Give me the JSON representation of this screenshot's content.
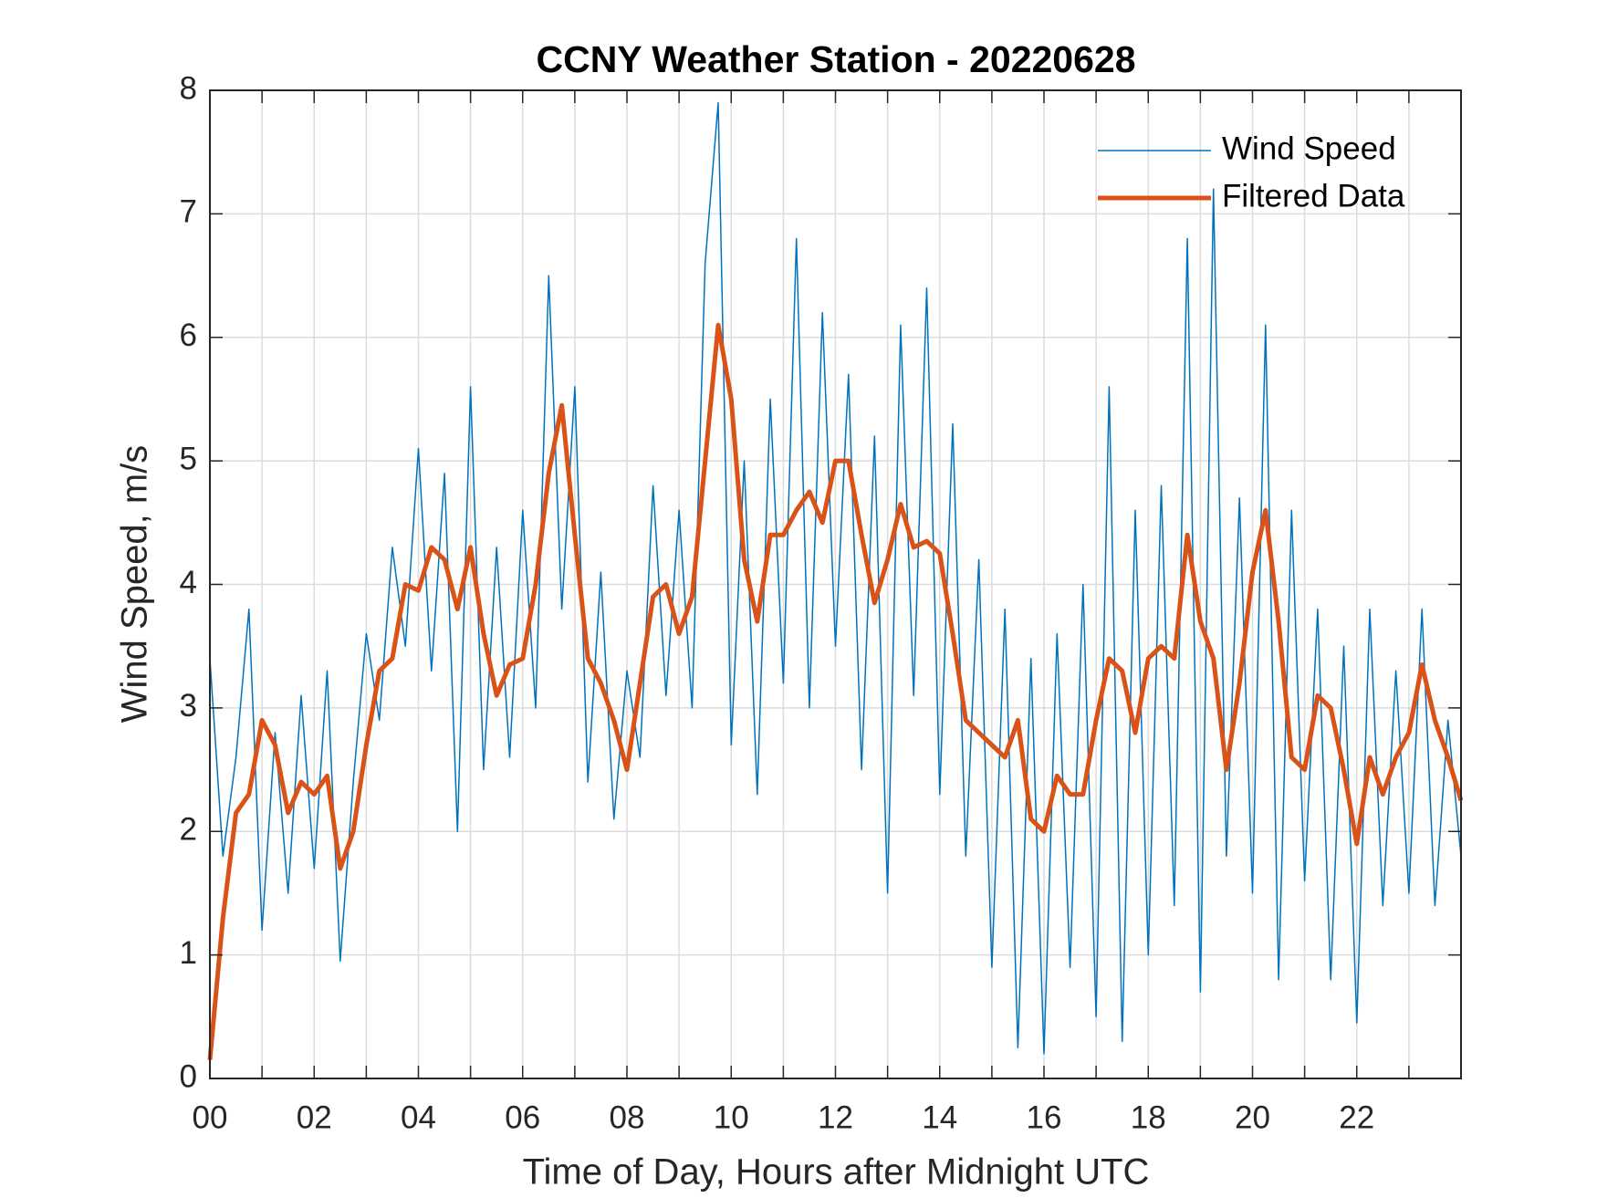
{
  "chart_data": {
    "type": "line",
    "title": "CCNY Weather Station - 20220628",
    "xlabel": "Time of Day, Hours after Midnight UTC",
    "ylabel": "Wind Speed, m/s",
    "x": [
      0,
      0.25,
      0.5,
      0.75,
      1,
      1.25,
      1.5,
      1.75,
      2,
      2.25,
      2.5,
      2.75,
      3,
      3.25,
      3.5,
      3.75,
      4,
      4.25,
      4.5,
      4.75,
      5,
      5.25,
      5.5,
      5.75,
      6,
      6.25,
      6.5,
      6.75,
      7,
      7.25,
      7.5,
      7.75,
      8,
      8.25,
      8.5,
      8.75,
      9,
      9.25,
      9.5,
      9.75,
      10,
      10.25,
      10.5,
      10.75,
      11,
      11.25,
      11.5,
      11.75,
      12,
      12.25,
      12.5,
      12.75,
      13,
      13.25,
      13.5,
      13.75,
      14,
      14.25,
      14.5,
      14.75,
      15,
      15.25,
      15.5,
      15.75,
      16,
      16.25,
      16.5,
      16.75,
      17,
      17.25,
      17.5,
      17.75,
      18,
      18.25,
      18.5,
      18.75,
      19,
      19.25,
      19.5,
      19.75,
      20,
      20.25,
      20.5,
      20.75,
      21,
      21.25,
      21.5,
      21.75,
      22,
      22.25,
      22.5,
      22.75,
      23,
      23.25,
      23.5,
      23.75,
      24
    ],
    "series": [
      {
        "name": "Wind Speed",
        "color": "#0072bd",
        "width": 1.5,
        "values": [
          3.4,
          1.8,
          2.6,
          3.8,
          1.2,
          2.8,
          1.5,
          3.1,
          1.7,
          3.3,
          0.95,
          2.4,
          3.6,
          2.9,
          4.3,
          3.5,
          5.1,
          3.3,
          4.9,
          2.0,
          5.6,
          2.5,
          4.3,
          2.6,
          4.6,
          3.0,
          6.5,
          3.8,
          5.6,
          2.4,
          4.1,
          2.1,
          3.3,
          2.6,
          4.8,
          3.1,
          4.6,
          3.0,
          6.6,
          7.9,
          2.7,
          5.0,
          2.3,
          5.5,
          3.2,
          6.8,
          3.0,
          6.2,
          3.5,
          5.7,
          2.5,
          5.2,
          1.5,
          6.1,
          3.1,
          6.4,
          2.3,
          5.3,
          1.8,
          4.2,
          0.9,
          3.8,
          0.25,
          3.4,
          0.2,
          3.6,
          0.9,
          4.0,
          0.5,
          5.6,
          0.3,
          4.6,
          1.0,
          4.8,
          1.4,
          6.8,
          0.7,
          7.2,
          1.8,
          4.7,
          1.5,
          6.1,
          0.8,
          4.6,
          1.6,
          3.8,
          0.8,
          3.5,
          0.45,
          3.8,
          1.4,
          3.3,
          1.5,
          3.8,
          1.4,
          2.9,
          1.8
        ]
      },
      {
        "name": "Filtered Data",
        "color": "#d95319",
        "width": 5,
        "values": [
          0.15,
          1.3,
          2.15,
          2.3,
          2.9,
          2.7,
          2.15,
          2.4,
          2.3,
          2.45,
          1.7,
          2.0,
          2.7,
          3.3,
          3.4,
          4.0,
          3.95,
          4.3,
          4.2,
          3.8,
          4.3,
          3.6,
          3.1,
          3.35,
          3.4,
          4.0,
          4.9,
          5.45,
          4.4,
          3.4,
          3.2,
          2.9,
          2.5,
          3.2,
          3.9,
          4.0,
          3.6,
          3.9,
          5.0,
          6.1,
          5.5,
          4.2,
          3.7,
          4.4,
          4.4,
          4.6,
          4.75,
          4.5,
          5.0,
          5.0,
          4.4,
          3.85,
          4.2,
          4.65,
          4.3,
          4.35,
          4.25,
          3.6,
          2.9,
          2.8,
          2.7,
          2.6,
          2.9,
          2.1,
          2.0,
          2.45,
          2.3,
          2.3,
          2.9,
          3.4,
          3.3,
          2.8,
          3.4,
          3.5,
          3.4,
          4.4,
          3.7,
          3.4,
          2.5,
          3.2,
          4.1,
          4.6,
          3.7,
          2.6,
          2.5,
          3.1,
          3.0,
          2.5,
          1.9,
          2.6,
          2.3,
          2.6,
          2.8,
          3.35,
          2.9,
          2.6,
          2.25
        ]
      }
    ],
    "xlim": [
      0,
      24
    ],
    "xticks": [
      {
        "value": 0,
        "label": "00"
      },
      {
        "value": 2,
        "label": "02"
      },
      {
        "value": 4,
        "label": "04"
      },
      {
        "value": 6,
        "label": "06"
      },
      {
        "value": 8,
        "label": "08"
      },
      {
        "value": 10,
        "label": "10"
      },
      {
        "value": 12,
        "label": "12"
      },
      {
        "value": 14,
        "label": "14"
      },
      {
        "value": 16,
        "label": "16"
      },
      {
        "value": 18,
        "label": "18"
      },
      {
        "value": 20,
        "label": "20"
      },
      {
        "value": 22,
        "label": "22"
      }
    ],
    "xminorticks": [
      1,
      3,
      5,
      7,
      9,
      11,
      13,
      15,
      17,
      19,
      21,
      23
    ],
    "ylim": [
      0,
      8
    ],
    "yticks": [
      0,
      1,
      2,
      3,
      4,
      5,
      6,
      7,
      8
    ],
    "grid": true,
    "legend": "upper right"
  }
}
